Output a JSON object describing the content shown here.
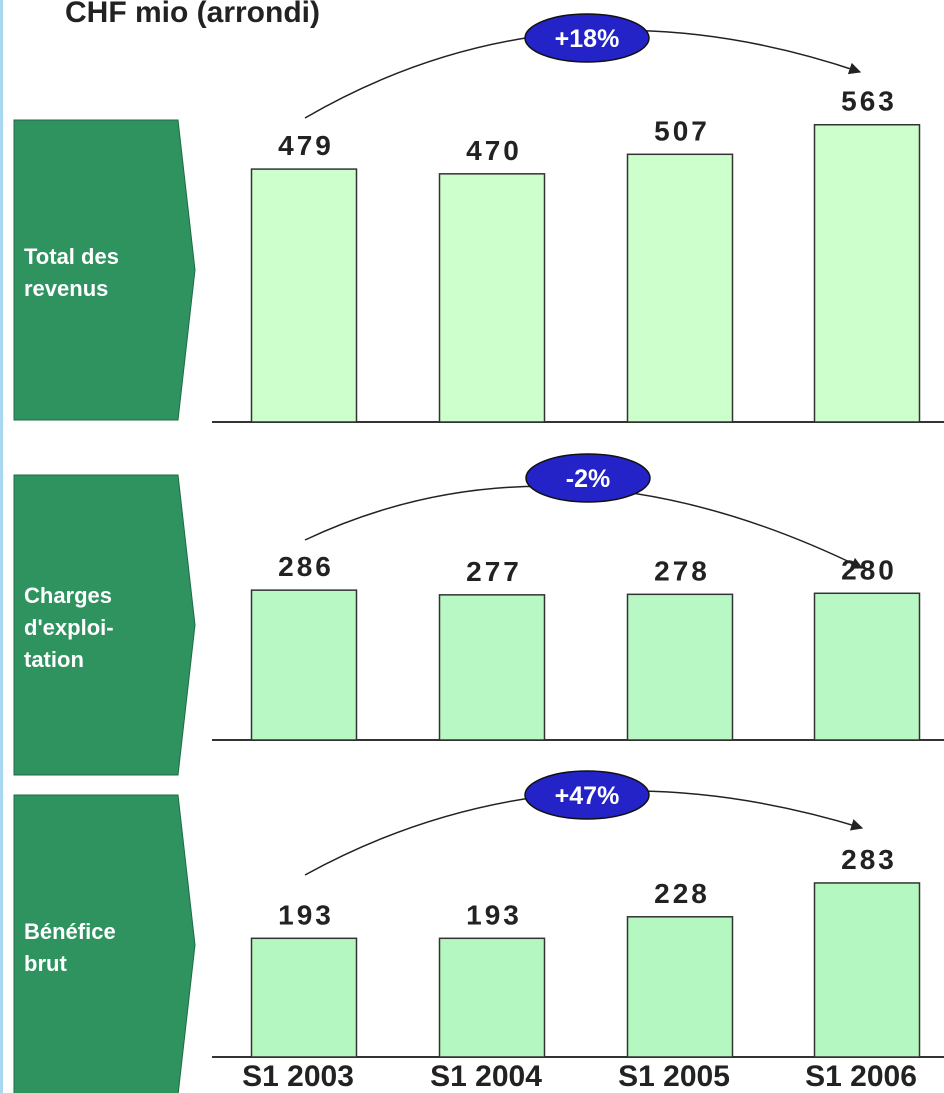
{
  "chart_data": [
    {
      "type": "bar",
      "title": "CHF mio (arrondi)",
      "label": [
        "Total des",
        "revenus"
      ],
      "annotation": "+18%",
      "values": [
        479,
        470,
        507,
        563
      ],
      "color": "#ccffcc"
    },
    {
      "type": "bar",
      "label": [
        "Charges",
        "d'exploi-",
        "tation"
      ],
      "annotation": "-2%",
      "values": [
        286,
        277,
        278,
        280
      ],
      "color": "#b8f8c4"
    },
    {
      "type": "bar",
      "label": [
        "Bénéfice",
        "brut"
      ],
      "annotation": "+47%",
      "values": [
        193,
        193,
        228,
        283
      ],
      "color": "#b4f7c0",
      "categories": [
        "S1 2003",
        "S1 2004",
        "S1 2005",
        "S1 2006"
      ]
    }
  ]
}
